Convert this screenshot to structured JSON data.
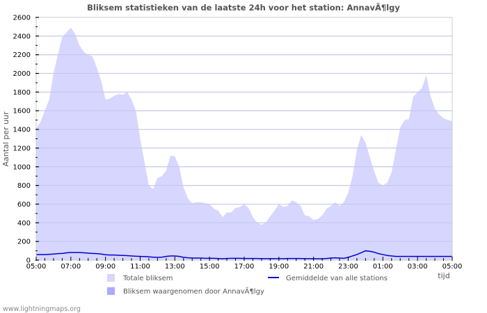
{
  "chart_data": {
    "type": "area",
    "title": "Bliksem statistieken van de laatste 24h voor het station: AnnavÃ¶lgy",
    "xlabel": "tijd",
    "ylabel": "Aantal per uur",
    "ylim": [
      0,
      2600
    ],
    "y_ticks": [
      0,
      200,
      400,
      600,
      800,
      1000,
      1200,
      1400,
      1600,
      1800,
      2000,
      2200,
      2400,
      2600
    ],
    "x_ticks": [
      "05:00",
      "07:00",
      "09:00",
      "11:00",
      "13:00",
      "15:00",
      "17:00",
      "19:00",
      "21:00",
      "23:00",
      "01:00",
      "03:00",
      "05:00"
    ],
    "grid": true,
    "legend_position": "bottom",
    "x_hours": [
      0,
      0.25,
      0.5,
      0.75,
      1.0,
      1.25,
      1.5,
      1.75,
      2.0,
      2.25,
      2.5,
      2.75,
      3.0,
      3.25,
      3.5,
      3.75,
      4.0,
      4.25,
      4.5,
      4.75,
      5.0,
      5.25,
      5.5,
      5.75,
      6.0,
      6.25,
      6.5,
      6.75,
      7.0,
      7.25,
      7.5,
      7.75,
      8.0,
      8.25,
      8.5,
      8.75,
      9.0,
      9.25,
      9.5,
      9.75,
      10.0,
      10.25,
      10.5,
      10.75,
      11.0,
      11.25,
      11.5,
      11.75,
      12.0,
      12.25,
      12.5,
      12.75,
      13.0,
      13.25,
      13.5,
      13.75,
      14.0,
      14.25,
      14.5,
      14.75,
      15.0,
      15.25,
      15.5,
      15.75,
      16.0,
      16.25,
      16.5,
      16.75,
      17.0,
      17.25,
      17.5,
      17.75,
      18.0,
      18.25,
      18.5,
      18.75,
      19.0,
      19.25,
      19.5,
      19.75,
      20.0,
      20.25,
      20.5,
      20.75,
      21.0,
      21.25,
      21.5,
      21.75,
      22.0,
      22.25,
      22.5,
      22.75,
      23.0,
      23.25,
      23.5,
      23.75,
      24.0
    ],
    "series": [
      {
        "name": "Totale bliksem",
        "type": "area",
        "color": "#d6d6ff",
        "values": [
          1410,
          1480,
          1600,
          1720,
          2000,
          2200,
          2390,
          2440,
          2490,
          2420,
          2300,
          2230,
          2200,
          2180,
          2060,
          1920,
          1720,
          1730,
          1760,
          1780,
          1770,
          1800,
          1720,
          1600,
          1300,
          1050,
          800,
          760,
          880,
          900,
          960,
          1120,
          1110,
          1000,
          780,
          660,
          610,
          620,
          620,
          610,
          600,
          550,
          530,
          460,
          510,
          510,
          560,
          570,
          600,
          560,
          460,
          400,
          380,
          400,
          470,
          530,
          600,
          570,
          580,
          640,
          620,
          580,
          480,
          470,
          430,
          440,
          480,
          550,
          580,
          620,
          580,
          620,
          720,
          900,
          1180,
          1340,
          1260,
          1100,
          950,
          830,
          800,
          830,
          940,
          1180,
          1420,
          1500,
          1510,
          1750,
          1800,
          1840,
          1980,
          1760,
          1620,
          1560,
          1520,
          1500,
          1490
        ]
      },
      {
        "name": "Bliksem waargenomen door AnnavÃ¶lgy",
        "type": "area",
        "color": "#aaaaff",
        "values": []
      },
      {
        "name": "Gemiddelde van alle stations",
        "type": "line",
        "color": "#0000cc",
        "values": [
          60,
          60,
          60,
          62,
          65,
          70,
          72,
          78,
          82,
          82,
          82,
          78,
          75,
          72,
          70,
          65,
          58,
          55,
          55,
          52,
          50,
          48,
          45,
          42,
          40,
          38,
          35,
          32,
          30,
          32,
          40,
          45,
          45,
          40,
          30,
          25,
          22,
          22,
          22,
          20,
          20,
          20,
          18,
          15,
          18,
          20,
          20,
          20,
          18,
          18,
          18,
          18,
          16,
          16,
          16,
          16,
          16,
          16,
          18,
          18,
          18,
          18,
          16,
          16,
          15,
          15,
          15,
          18,
          22,
          25,
          22,
          20,
          30,
          45,
          60,
          80,
          100,
          95,
          85,
          70,
          60,
          50,
          45,
          40,
          40,
          40,
          40,
          40,
          40,
          40,
          40,
          40,
          40,
          40,
          40,
          40,
          40
        ]
      }
    ]
  },
  "chart": {
    "title": "Bliksem statistieken van de laatste 24h voor het station: AnnavÃ¶lgy",
    "ylabel": "Aantal per uur",
    "xlabel": "tijd"
  },
  "legend": {
    "items": [
      {
        "label": "Totale bliksem",
        "color": "#d6d6ff",
        "kind": "swatch"
      },
      {
        "label": "Bliksem waargenomen door AnnavÃ¶lgy",
        "color": "#aaaaff",
        "kind": "swatch"
      },
      {
        "label": "Gemiddelde van alle stations",
        "color": "#0000cc",
        "kind": "line"
      }
    ]
  },
  "footer": {
    "text": "www.lightningmaps.org"
  },
  "colors": {
    "grid": "#cccccc",
    "axis": "#000000",
    "frame": "#cccccc",
    "total_fill": "#d6d6ff",
    "station_fill": "#aaaaff",
    "average_line": "#0000cc"
  }
}
